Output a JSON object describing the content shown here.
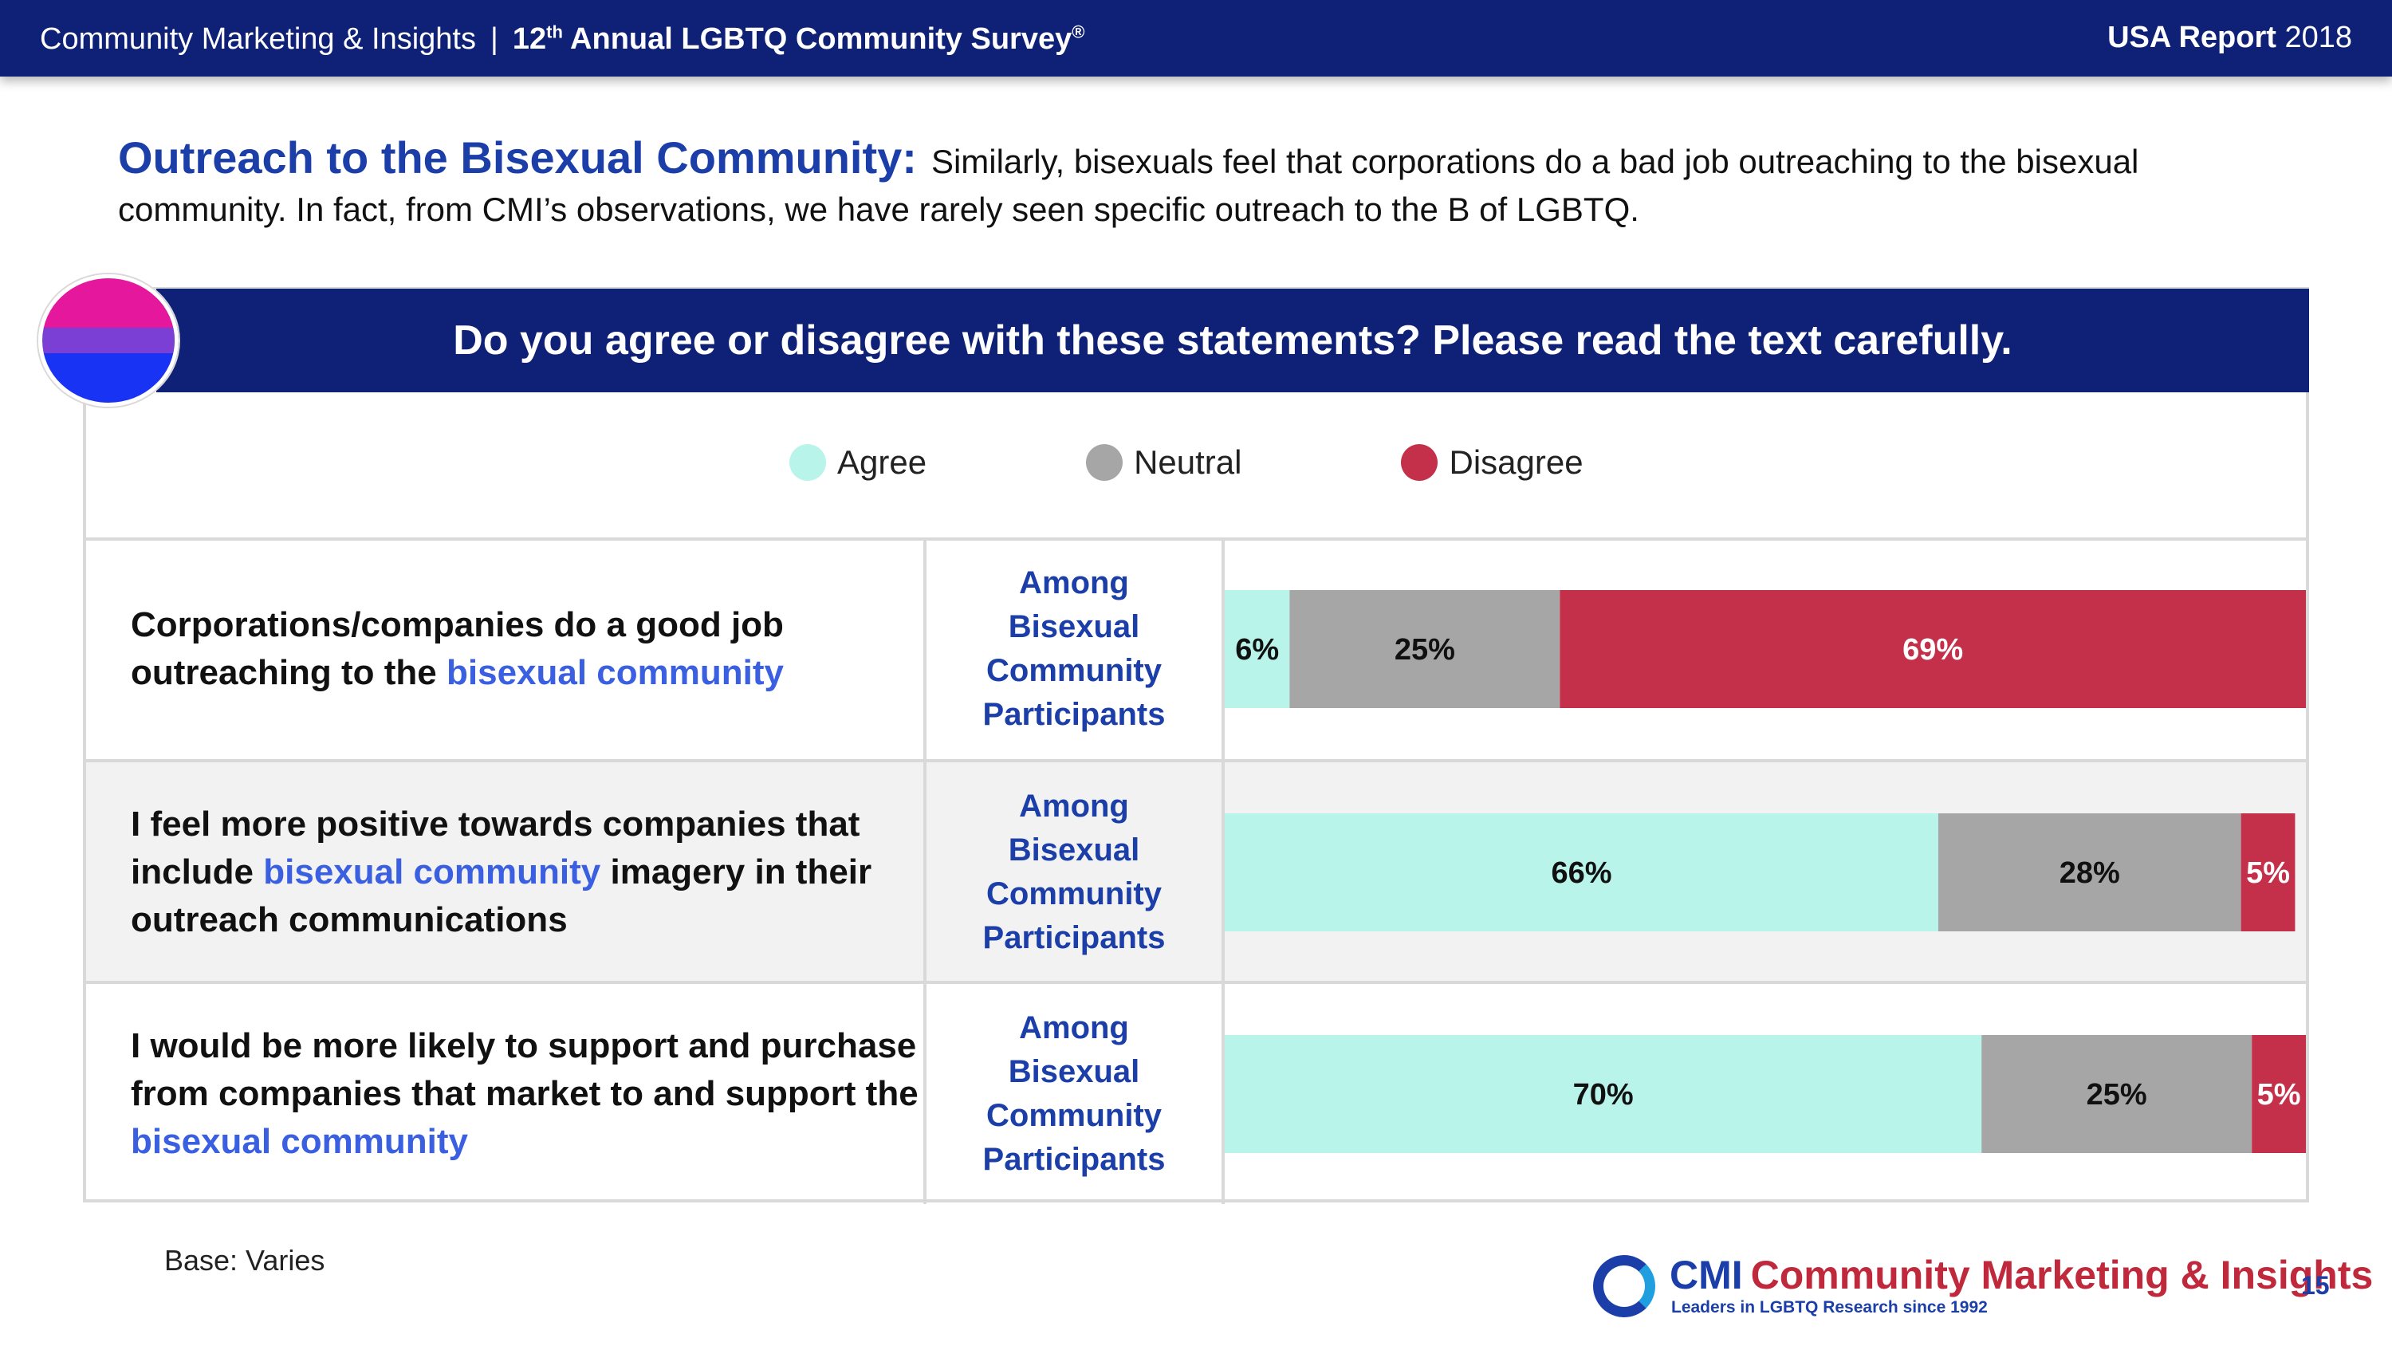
{
  "header": {
    "org": "Community Marketing & Insights",
    "separator": "|",
    "survey_prefix": "12",
    "survey_sup": "th",
    "survey_rest": " Annual LGBTQ Community Survey",
    "survey_reg": "®",
    "report_bold": "USA Report",
    "report_year": "2018"
  },
  "intro": {
    "heading": "Outreach to the Bisexual Community:",
    "text": "Similarly, bisexuals feel that corporations do a bad job outreaching to the bisexual community. In fact, from CMI’s observations, we have rarely seen specific outreach to the B of LGBTQ."
  },
  "question": "Do you agree or disagree with these statements? Please read the text carefully.",
  "colors": {
    "agree": "#b8f4ea",
    "neutral": "#a6a6a6",
    "disagree": "#c4304a",
    "navy": "#0f2177",
    "label_dark": "#111111",
    "label_light": "#ffffff"
  },
  "chart_data": {
    "type": "bar",
    "orientation": "horizontal",
    "stacked": true,
    "title": "Do you agree or disagree with these statements? Please read the text carefully.",
    "legend": [
      "Agree",
      "Neutral",
      "Disagree"
    ],
    "legend_position": "top",
    "categories": [
      "Corporations/companies do a good job outreaching to the bisexual community",
      "I feel more positive towards companies that include bisexual community imagery in their outreach communications",
      "I would be more likely to support and purchase from companies that market to and support the bisexual community"
    ],
    "segment_label": "Among Bisexual Community Participants",
    "series": [
      {
        "name": "Agree",
        "values": [
          6,
          66,
          70
        ]
      },
      {
        "name": "Neutral",
        "values": [
          25,
          28,
          25
        ]
      },
      {
        "name": "Disagree",
        "values": [
          69,
          5,
          5
        ]
      }
    ],
    "unit": "%",
    "xlim": [
      0,
      100
    ]
  },
  "statements": [
    {
      "before": "Corporations/companies do a good job outreaching to the ",
      "highlight": "bisexual community",
      "after": ""
    },
    {
      "before": "I feel more positive towards companies that include ",
      "highlight": "bisexual community",
      "after": " imagery in their outreach communications"
    },
    {
      "before": "I would be more likely to support and purchase from companies that market to and support the ",
      "highlight": "bisexual community",
      "after": ""
    }
  ],
  "among_lines": [
    "Among",
    "Bisexual",
    "Community",
    "Participants"
  ],
  "footer": {
    "base": "Base: Varies",
    "logo_cmi": "CMI",
    "logo_name": "Community Marketing & Insights",
    "logo_tagline": "Leaders in LGBTQ Research since 1992",
    "page_number": "15"
  }
}
